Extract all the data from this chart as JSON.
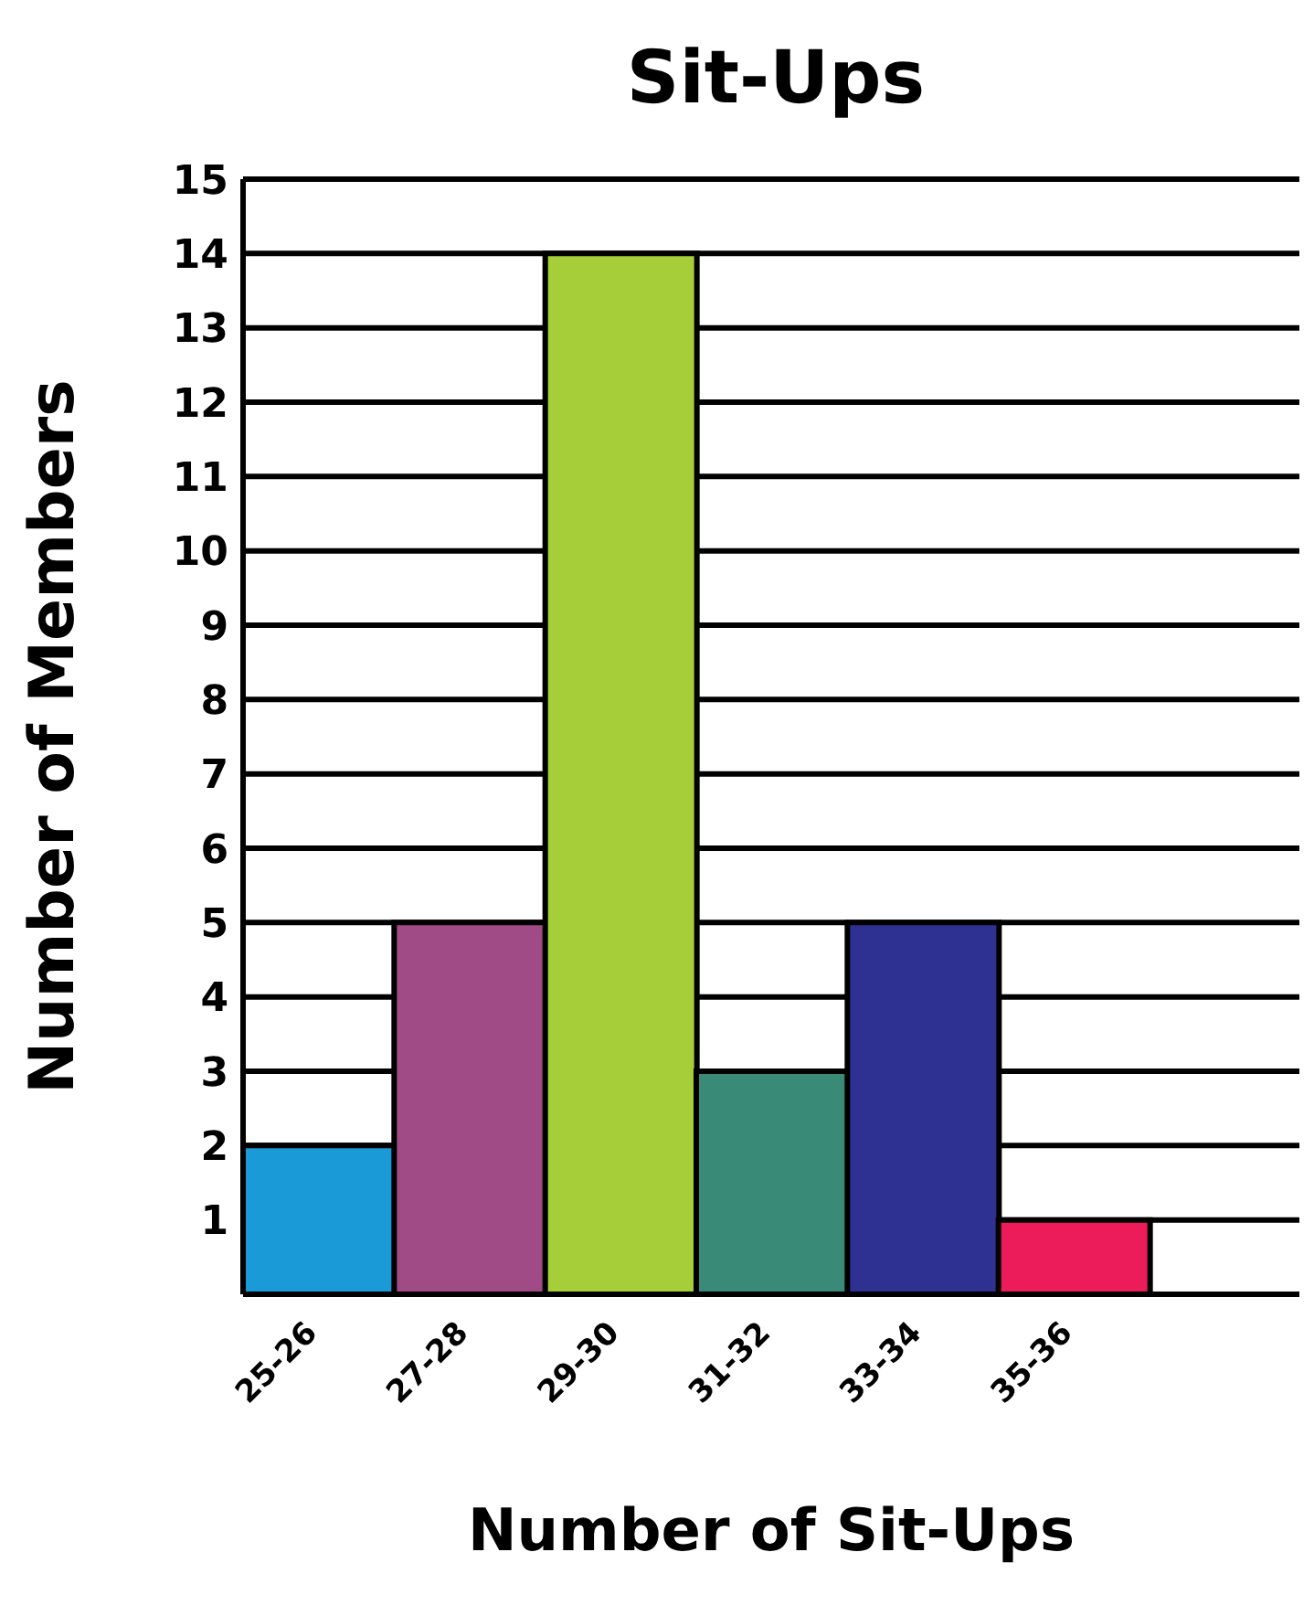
{
  "chart_data": {
    "type": "bar",
    "title": "Sit-Ups",
    "xlabel": "Number of Sit-Ups",
    "ylabel": "Number of Members",
    "categories": [
      "25-26",
      "27-28",
      "29-30",
      "31-32",
      "33-34",
      "35-36"
    ],
    "values": [
      2,
      5,
      14,
      3,
      5,
      1
    ],
    "colors": [
      "#1a9ad6",
      "#a04a86",
      "#a6ce39",
      "#3a8a78",
      "#2e3192",
      "#ec1c5a"
    ],
    "ylim": [
      0,
      15
    ],
    "yticks": [
      1,
      2,
      3,
      4,
      5,
      6,
      7,
      8,
      9,
      10,
      11,
      12,
      13,
      14,
      15
    ],
    "grid": "y"
  }
}
